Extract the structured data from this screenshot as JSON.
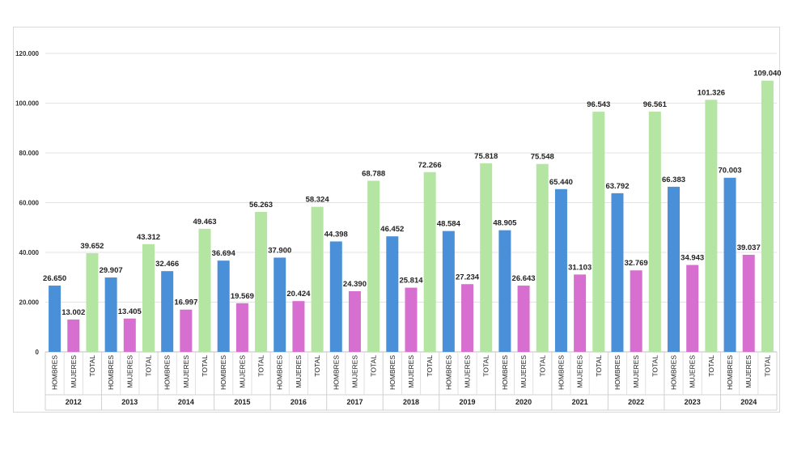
{
  "chart_data": {
    "type": "bar",
    "title": "",
    "xlabel": "",
    "ylabel": "",
    "ylim": [
      0,
      120000
    ],
    "yticks": [
      0,
      20000,
      40000,
      60000,
      80000,
      100000,
      120000
    ],
    "ytick_labels": [
      "0",
      "20.000",
      "40.000",
      "60.000",
      "80.000",
      "100.000",
      "120.000"
    ],
    "categories": [
      "2012",
      "2013",
      "2014",
      "2015",
      "2016",
      "2017",
      "2018",
      "2019",
      "2020",
      "2021",
      "2022",
      "2023",
      "2024"
    ],
    "subcategories": [
      "HOMBRES",
      "MUJERES",
      "TOTAL"
    ],
    "series": [
      {
        "name": "HOMBRES",
        "color": "#4a90d9",
        "values": [
          26650,
          29907,
          32466,
          36694,
          37900,
          44398,
          46452,
          48584,
          48905,
          65440,
          63792,
          66383,
          70003
        ],
        "labels": [
          "26.650",
          "29.907",
          "32.466",
          "36.694",
          "37.900",
          "44.398",
          "46.452",
          "48.584",
          "48.905",
          "65.440",
          "63.792",
          "66.383",
          "70.003"
        ]
      },
      {
        "name": "MUJERES",
        "color": "#d76fd0",
        "values": [
          13002,
          13405,
          16997,
          19569,
          20424,
          24390,
          25814,
          27234,
          26643,
          31103,
          32769,
          34943,
          39037
        ],
        "labels": [
          "13.002",
          "13.405",
          "16.997",
          "19.569",
          "20.424",
          "24.390",
          "25.814",
          "27.234",
          "26.643",
          "31.103",
          "32.769",
          "34.943",
          "39.037"
        ]
      },
      {
        "name": "TOTAL",
        "color": "#b4e5a2",
        "values": [
          39652,
          43312,
          49463,
          56263,
          58324,
          68788,
          72266,
          75818,
          75548,
          96543,
          96561,
          101326,
          109040
        ],
        "labels": [
          "39.652",
          "43.312",
          "49.463",
          "56.263",
          "58.324",
          "68.788",
          "72.266",
          "75.818",
          "75.548",
          "96.543",
          "96.561",
          "101.326",
          "109.040"
        ]
      }
    ],
    "grid": true,
    "legend": "none"
  }
}
